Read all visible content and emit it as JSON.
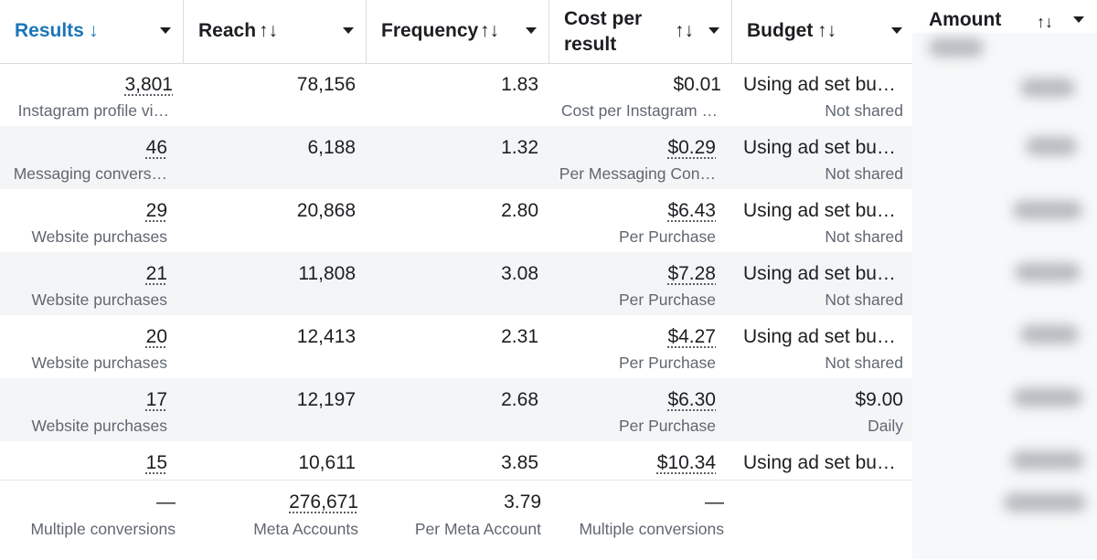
{
  "columns": [
    {
      "label": "Results",
      "sort_icon": "↓",
      "sorted": true
    },
    {
      "label": "Reach",
      "sort_icon": "↑↓"
    },
    {
      "label": "Frequency",
      "sort_icon": "↑↓"
    },
    {
      "label_line1": "Cost per",
      "label_line2": "result",
      "sort_icon": "↑↓"
    },
    {
      "label": "Budget",
      "sort_icon": "↑↓"
    },
    {
      "label": "Amount",
      "sort_icon": "↑↓"
    }
  ],
  "rows": [
    {
      "results": "3,801",
      "results_sub": "Instagram profile vi…",
      "reach": "78,156",
      "frequency": "1.83",
      "cost": "$0.01",
      "cost_sub": "Cost per Instagram …",
      "budget": "Using ad set bu…",
      "budget_sub": "Not shared"
    },
    {
      "results": "46",
      "results_sub": "Messaging convers…",
      "reach": "6,188",
      "frequency": "1.32",
      "cost": "$0.29",
      "cost_sub": "Per Messaging Con…",
      "budget": "Using ad set bu…",
      "budget_sub": "Not shared"
    },
    {
      "results": "29",
      "results_sub": "Website purchases",
      "reach": "20,868",
      "frequency": "2.80",
      "cost": "$6.43",
      "cost_sub": "Per Purchase",
      "budget": "Using ad set bu…",
      "budget_sub": "Not shared"
    },
    {
      "results": "21",
      "results_sub": "Website purchases",
      "reach": "11,808",
      "frequency": "3.08",
      "cost": "$7.28",
      "cost_sub": "Per Purchase",
      "budget": "Using ad set bu…",
      "budget_sub": "Not shared"
    },
    {
      "results": "20",
      "results_sub": "Website purchases",
      "reach": "12,413",
      "frequency": "2.31",
      "cost": "$4.27",
      "cost_sub": "Per Purchase",
      "budget": "Using ad set bu…",
      "budget_sub": "Not shared"
    },
    {
      "results": "17",
      "results_sub": "Website purchases",
      "reach": "12,197",
      "frequency": "2.68",
      "cost": "$6.30",
      "cost_sub": "Per Purchase",
      "budget": "$9.00",
      "budget_sub": "Daily"
    },
    {
      "results": "15",
      "results_sub": "",
      "reach": "10,611",
      "frequency": "3.85",
      "cost": "$10.34",
      "cost_sub": "",
      "budget": "Using ad set bu…",
      "budget_sub": ""
    }
  ],
  "totals": {
    "results": "—",
    "results_sub": "Multiple conversions",
    "reach": "276,671",
    "reach_sub": "Meta Accounts",
    "frequency": "3.79",
    "frequency_sub": "Per Meta Account",
    "cost": "—",
    "cost_sub": "Multiple conversions"
  },
  "colors": {
    "accent": "#1a76b8",
    "stripe": "#f4f5f7",
    "subtext": "#606770"
  }
}
